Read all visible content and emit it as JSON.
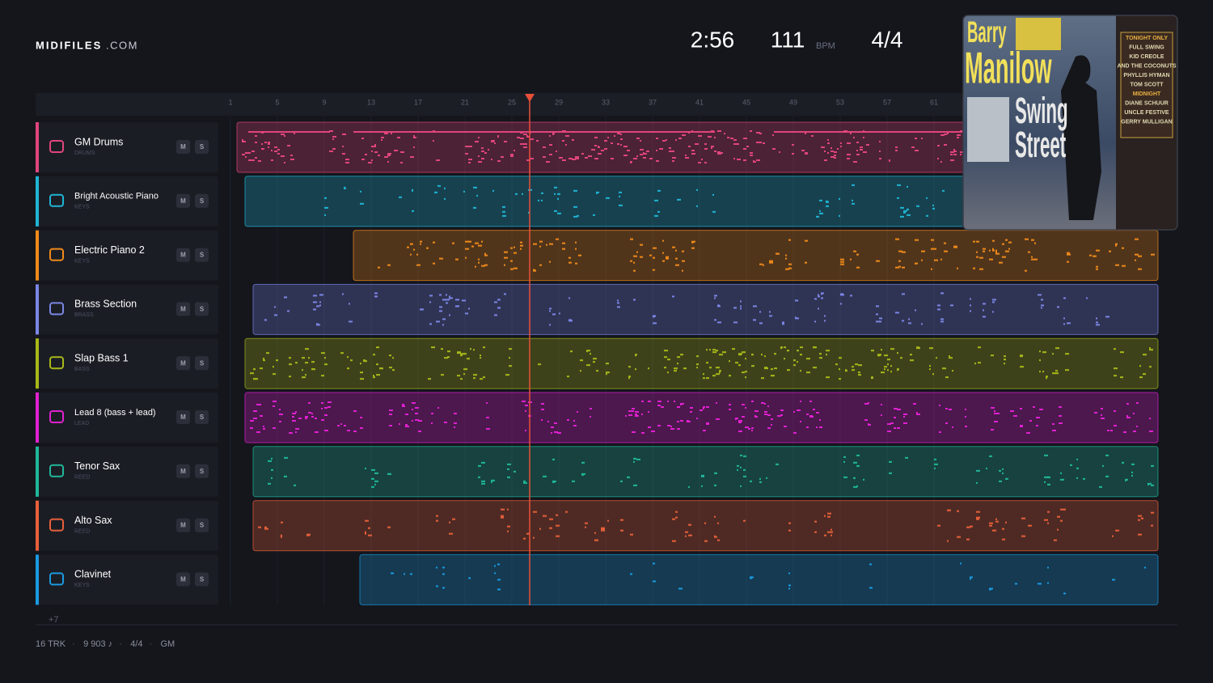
{
  "header": {
    "logo": "MIDIFILES",
    "logo_suffix": ".COM",
    "time": "2:56",
    "tempo": "111",
    "tempo_unit": "BPM",
    "meter": "4/4"
  },
  "ruler": {
    "marks": [
      "1",
      "5",
      "9",
      "13",
      "17",
      "21",
      "25",
      "29",
      "33",
      "37",
      "41",
      "45",
      "49",
      "53",
      "57",
      "61"
    ]
  },
  "tracks": [
    {
      "name": "GM Drums",
      "category": "DRUMS",
      "mute": "M",
      "solo": "S",
      "color": "#e0457b"
    },
    {
      "name": "Bright Acoustic Piano",
      "category": "KEYS",
      "mute": "M",
      "solo": "S",
      "color": "#1fb5d4"
    },
    {
      "name": "Electric Piano 2",
      "category": "KEYS",
      "mute": "M",
      "solo": "S",
      "color": "#f08a1a"
    },
    {
      "name": "Brass Section",
      "category": "BRASS",
      "mute": "M",
      "solo": "S",
      "color": "#7b86e6"
    },
    {
      "name": "Slap Bass 1",
      "category": "BASS",
      "mute": "M",
      "solo": "S",
      "color": "#a8b818"
    },
    {
      "name": "Lead 8 (bass + lead)",
      "category": "LEAD",
      "mute": "M",
      "solo": "S",
      "color": "#e020d0"
    },
    {
      "name": "Tenor Sax",
      "category": "REED",
      "mute": "M",
      "solo": "S",
      "color": "#20b89a"
    },
    {
      "name": "Alto Sax",
      "category": "REED",
      "mute": "M",
      "solo": "S",
      "color": "#e8603a"
    },
    {
      "name": "Clavinet",
      "category": "KEYS",
      "mute": "M",
      "solo": "S",
      "color": "#1a9ae0"
    }
  ],
  "more_tracks": "+7",
  "footer": {
    "items": [
      "16 TRK",
      "9 903 ♪",
      "4/4",
      "GM"
    ],
    "separator": "·"
  },
  "album": {
    "title_lines": [
      "Barry",
      "Manilow",
      "Swing",
      "Street"
    ],
    "side_lines": [
      "TONIGHT ONLY",
      "FULL SWING",
      "KID CREOLE",
      "AND THE COCONUTS",
      "PHYLLIS HYMAN",
      "TOM SCOTT",
      "MIDNIGHT",
      "DIANE SCHUUR",
      "UNCLE FESTIVE",
      "GERRY MULLIGAN"
    ]
  }
}
